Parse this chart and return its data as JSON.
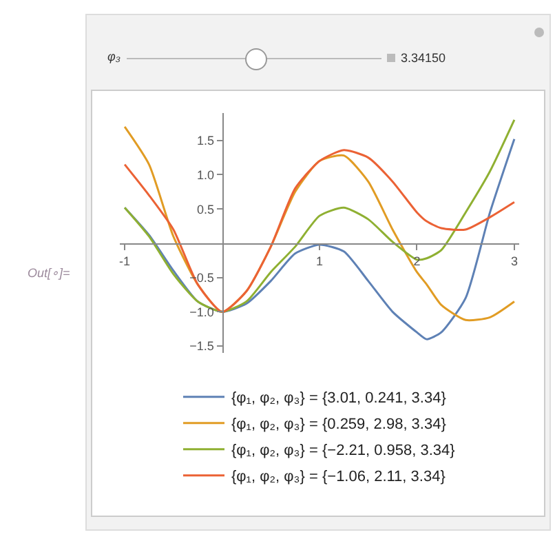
{
  "chart_data": {
    "type": "line",
    "x": [
      -1,
      -0.75,
      -0.5,
      -0.25,
      0,
      0.25,
      0.5,
      0.75,
      1,
      1.25,
      1.5,
      1.75,
      2,
      2.1,
      2.25,
      2.5,
      2.75,
      3
    ],
    "series": [
      {
        "name": "{φ₁, φ₂, φ₃} = {3.01, 0.241, 3.34}",
        "color": "#5e81b5",
        "values": [
          0.52,
          0.12,
          -0.4,
          -0.85,
          -1.0,
          -0.88,
          -0.55,
          -0.15,
          -0.02,
          -0.12,
          -0.55,
          -1.0,
          -1.3,
          -1.4,
          -1.3,
          -0.8,
          0.45,
          1.52
        ]
      },
      {
        "name": "{φ₁, φ₂, φ₃} = {0.259, 2.98, 3.34}",
        "color": "#e19c24",
        "values": [
          1.7,
          1.15,
          0.1,
          -0.6,
          -1.0,
          -0.7,
          -0.05,
          0.75,
          1.2,
          1.28,
          0.9,
          0.2,
          -0.42,
          -0.6,
          -0.9,
          -1.12,
          -1.08,
          -0.85
        ]
      },
      {
        "name": "{φ₁, φ₂, φ₃} = {−2.21, 0.958, 3.34}",
        "color": "#8fb032",
        "values": [
          0.52,
          0.1,
          -0.45,
          -0.85,
          -1.0,
          -0.85,
          -0.42,
          -0.05,
          0.4,
          0.52,
          0.35,
          0.02,
          -0.24,
          -0.22,
          -0.1,
          0.45,
          1.05,
          1.8
        ]
      },
      {
        "name": "{φ₁, φ₂, φ₃} = {−1.06, 2.11, 3.34}",
        "color": "#eb6235",
        "values": [
          1.15,
          0.7,
          0.2,
          -0.6,
          -1.0,
          -0.7,
          -0.05,
          0.8,
          1.2,
          1.36,
          1.25,
          0.9,
          0.45,
          0.32,
          0.22,
          0.2,
          0.38,
          0.6
        ]
      }
    ],
    "xlim": [
      -1.05,
      3.05
    ],
    "ylim": [
      -1.6,
      1.9
    ],
    "xticks": [
      -1,
      1,
      2,
      3
    ],
    "yticks": [
      {
        "value": -1.5,
        "label": "−1.5"
      },
      {
        "value": -1,
        "label": "−1.0"
      },
      {
        "value": -0.5,
        "label": "−0.5"
      },
      {
        "value": 0.5,
        "label": "0.5"
      },
      {
        "value": 1,
        "label": "1.0"
      },
      {
        "value": 1.5,
        "label": "1.5"
      }
    ],
    "grid": false,
    "legend": "bottom",
    "marker": "none",
    "line_style": "solid",
    "annotations": [
      "φ₃",
      "3.34150",
      "Out[∘]="
    ]
  }
}
